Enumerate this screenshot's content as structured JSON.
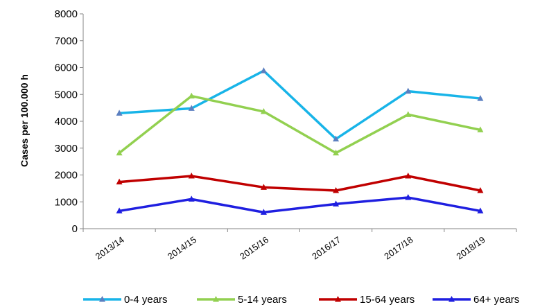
{
  "chart_data": {
    "type": "line",
    "title": "",
    "xlabel": "",
    "ylabel": "Cases per 100.000 h",
    "categories": [
      "2013/14",
      "2014/15",
      "2015/16",
      "2016/17",
      "2017/18",
      "2018/19"
    ],
    "ylim": [
      0,
      8000
    ],
    "yticks": [
      0,
      1000,
      2000,
      3000,
      4000,
      5000,
      6000,
      7000,
      8000
    ],
    "grid": false,
    "legend_position": "bottom",
    "series": [
      {
        "name": "0-4 years",
        "color": "#18b4e8",
        "marker_color": "#5b7fc0",
        "values": [
          4300,
          4480,
          5880,
          3340,
          5120,
          4850
        ]
      },
      {
        "name": "5-14 years",
        "color": "#92d050",
        "marker_color": "#92d050",
        "values": [
          2820,
          4940,
          4360,
          2820,
          4250,
          3680
        ]
      },
      {
        "name": "15-64 years",
        "color": "#c00000",
        "marker_color": "#c00000",
        "values": [
          1740,
          1960,
          1540,
          1420,
          1960,
          1420
        ]
      },
      {
        "name": "64+ years",
        "color": "#1f1fe0",
        "marker_color": "#1f1fe0",
        "values": [
          660,
          1100,
          610,
          920,
          1160,
          660
        ]
      }
    ]
  }
}
